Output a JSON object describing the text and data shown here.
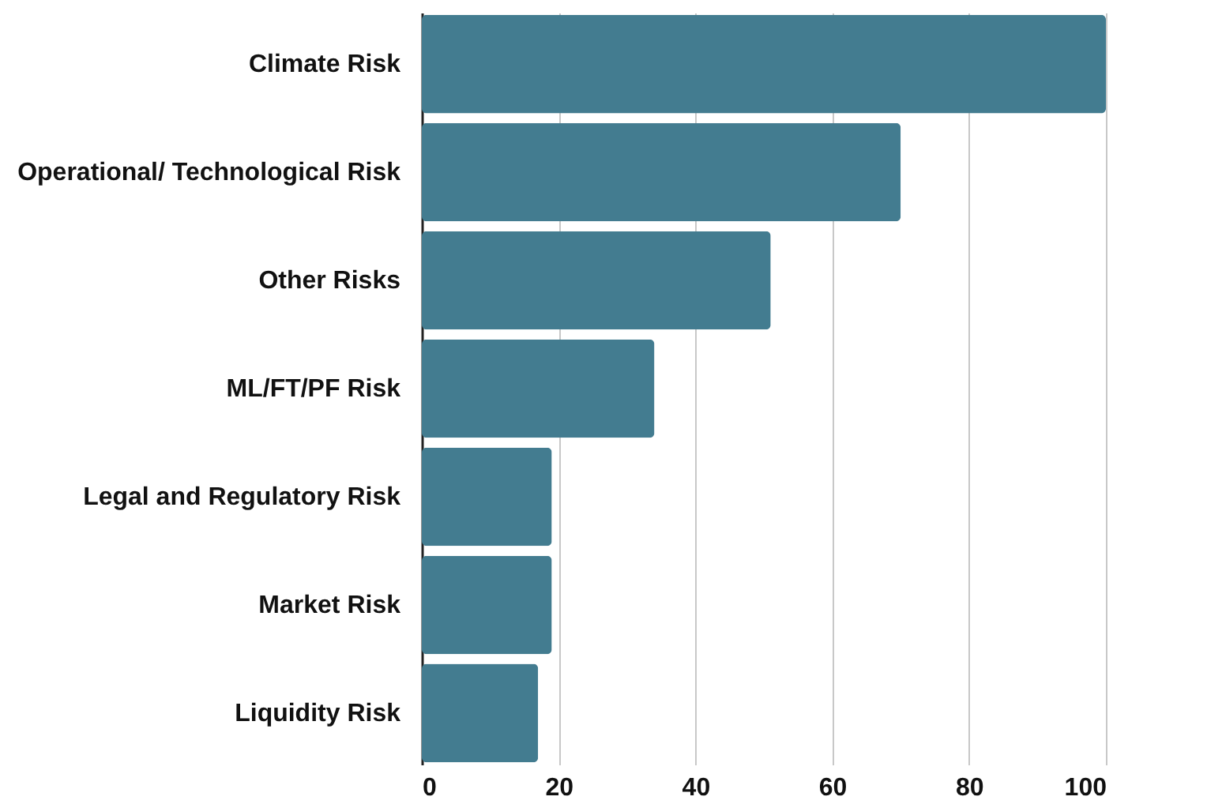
{
  "chart_data": {
    "type": "bar",
    "orientation": "horizontal",
    "categories": [
      "Climate Risk",
      "Operational/ Technological Risk",
      "Other Risks",
      "ML/FT/PF Risk",
      "Legal and Regulatory Risk",
      "Market Risk",
      "Liquidity Risk"
    ],
    "values": [
      100,
      70,
      51,
      34,
      19,
      19,
      17
    ],
    "color": "#437c90",
    "xlim": [
      0,
      100
    ],
    "xticks": [
      0,
      20,
      40,
      60,
      80,
      100
    ],
    "grid": "x"
  }
}
